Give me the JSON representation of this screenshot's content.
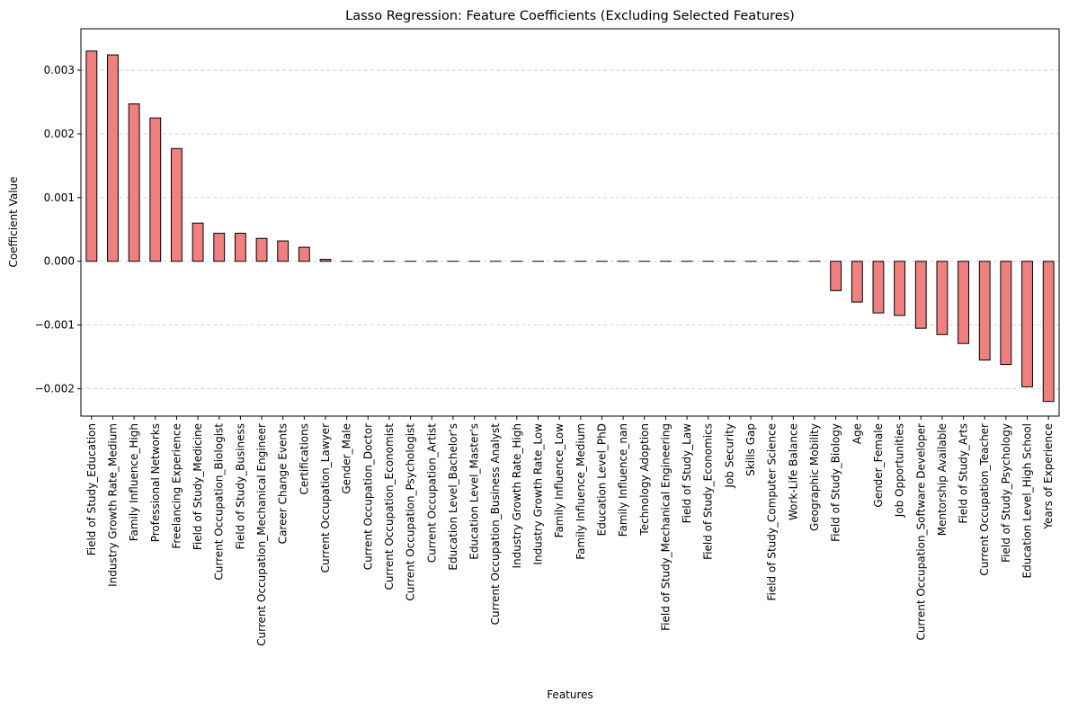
{
  "chart_data": {
    "type": "bar",
    "title": "Lasso Regression: Feature Coefficients (Excluding Selected Features)",
    "xlabel": "Features",
    "ylabel": "Coefficient Value",
    "ylim": [
      -0.00243,
      0.00365
    ],
    "yticks": [
      -0.002,
      -0.001,
      0.0,
      0.001,
      0.002,
      0.003
    ],
    "ytick_labels": [
      "−0.002",
      "−0.001",
      "0.000",
      "0.001",
      "0.002",
      "0.003"
    ],
    "grid": "y",
    "bar_color": "#f08080",
    "edge_color": "#000000",
    "categories": [
      "Field of Study_Education",
      "Industry Growth Rate_Medium",
      "Family Influence_High",
      "Professional Networks",
      "Freelancing Experience",
      "Field of Study_Medicine",
      "Current Occupation_Biologist",
      "Field of Study_Business",
      "Current Occupation_Mechanical Engineer",
      "Career Change Events",
      "Certifications",
      "Current Occupation_Lawyer",
      "Gender_Male",
      "Current Occupation_Doctor",
      "Current Occupation_Economist",
      "Current Occupation_Psychologist",
      "Current Occupation_Artist",
      "Education Level_Bachelor's",
      "Education Level_Master's",
      "Current Occupation_Business Analyst",
      "Industry Growth Rate_High",
      "Industry Growth Rate_Low",
      "Family Influence_Low",
      "Family Influence_Medium",
      "Education Level_PhD",
      "Family Influence_nan",
      "Technology Adoption",
      "Field of Study_Mechanical Engineering",
      "Field of Study_Law",
      "Field of Study_Economics",
      "Job Security",
      "Skills Gap",
      "Field of Study_Computer Science",
      "Work-Life Balance",
      "Geographic Mobility",
      "Field of Study_Biology",
      "Age",
      "Gender_Female",
      "Job Opportunities",
      "Current Occupation_Software Developer",
      "Mentorship Available",
      "Field of Study_Arts",
      "Current Occupation_Teacher",
      "Field of Study_Psychology",
      "Education Level_High School",
      "Years of Experience"
    ],
    "values": [
      0.0033,
      0.00324,
      0.00247,
      0.00225,
      0.00177,
      0.0006,
      0.00044,
      0.00044,
      0.00036,
      0.00032,
      0.00022,
      3e-05,
      0.0,
      0.0,
      0.0,
      0.0,
      0.0,
      0.0,
      0.0,
      0.0,
      0.0,
      0.0,
      0.0,
      0.0,
      0.0,
      0.0,
      0.0,
      0.0,
      0.0,
      0.0,
      0.0,
      0.0,
      0.0,
      0.0,
      0.0,
      -0.00046,
      -0.00064,
      -0.00081,
      -0.00085,
      -0.00105,
      -0.00115,
      -0.00129,
      -0.00155,
      -0.00162,
      -0.00197,
      -0.0022
    ]
  }
}
